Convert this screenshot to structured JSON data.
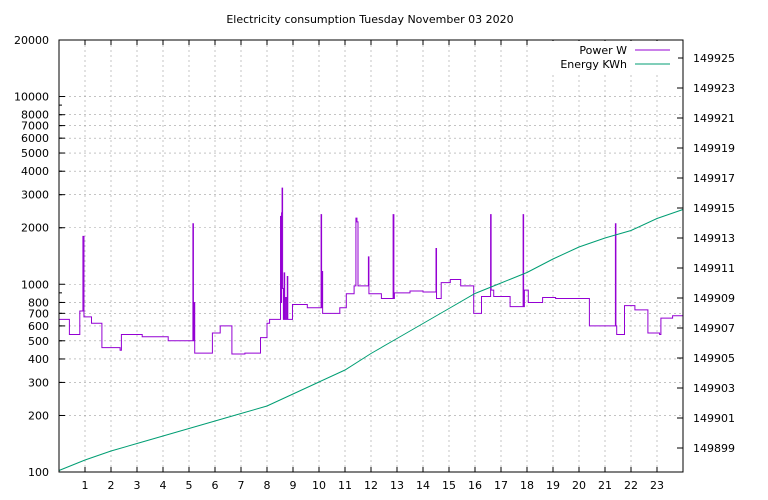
{
  "chart_data": {
    "type": "line",
    "title": "Electricity consumption Tuesday November 03 2020",
    "grid": true,
    "legend_position": "top-right",
    "x": {
      "range": [
        0,
        24
      ],
      "ticks": [
        1,
        2,
        3,
        4,
        5,
        6,
        7,
        8,
        9,
        10,
        11,
        12,
        13,
        14,
        15,
        16,
        17,
        18,
        19,
        20,
        21,
        22,
        23
      ]
    },
    "y_left": {
      "scale": "log",
      "range": [
        100,
        20000
      ],
      "ticks": [
        100,
        200,
        300,
        400,
        500,
        600,
        700,
        800,
        1000,
        2000,
        3000,
        4000,
        5000,
        6000,
        7000,
        8000,
        10000,
        20000
      ]
    },
    "y_right": {
      "scale": "linear",
      "range": [
        149897.4,
        149926.2
      ],
      "ticks": [
        149899,
        149901,
        149903,
        149905,
        149907,
        149909,
        149911,
        149913,
        149915,
        149917,
        149919,
        149921,
        149923,
        149925
      ]
    },
    "series": [
      {
        "name": "Power W",
        "color": "#9400d3",
        "axis": "left",
        "points": [
          [
            0.0,
            650
          ],
          [
            0.4,
            650
          ],
          [
            0.4,
            540
          ],
          [
            0.8,
            540
          ],
          [
            0.8,
            720
          ],
          [
            0.92,
            720
          ],
          [
            0.92,
            1800
          ],
          [
            0.96,
            1800
          ],
          [
            0.96,
            670
          ],
          [
            1.25,
            670
          ],
          [
            1.25,
            620
          ],
          [
            1.65,
            620
          ],
          [
            1.65,
            460
          ],
          [
            2.35,
            460
          ],
          [
            2.35,
            445
          ],
          [
            2.4,
            445
          ],
          [
            2.4,
            540
          ],
          [
            3.2,
            540
          ],
          [
            3.2,
            525
          ],
          [
            4.2,
            525
          ],
          [
            4.2,
            500
          ],
          [
            5.15,
            500
          ],
          [
            5.15,
            2100
          ],
          [
            5.17,
            2100
          ],
          [
            5.17,
            500
          ],
          [
            5.2,
            500
          ],
          [
            5.2,
            800
          ],
          [
            5.22,
            800
          ],
          [
            5.22,
            430
          ],
          [
            5.9,
            430
          ],
          [
            5.9,
            550
          ],
          [
            6.2,
            550
          ],
          [
            6.2,
            600
          ],
          [
            6.65,
            600
          ],
          [
            6.65,
            425
          ],
          [
            7.15,
            425
          ],
          [
            7.15,
            430
          ],
          [
            7.75,
            430
          ],
          [
            7.75,
            520
          ],
          [
            8.0,
            520
          ],
          [
            8.0,
            620
          ],
          [
            8.1,
            620
          ],
          [
            8.1,
            650
          ],
          [
            8.52,
            650
          ],
          [
            8.52,
            2300
          ],
          [
            8.54,
            2300
          ],
          [
            8.54,
            800
          ],
          [
            8.56,
            800
          ],
          [
            8.56,
            2400
          ],
          [
            8.58,
            2400
          ],
          [
            8.58,
            3250
          ],
          [
            8.6,
            3250
          ],
          [
            8.6,
            950
          ],
          [
            8.63,
            950
          ],
          [
            8.63,
            650
          ],
          [
            8.66,
            650
          ],
          [
            8.66,
            1150
          ],
          [
            8.68,
            1150
          ],
          [
            8.68,
            650
          ],
          [
            8.72,
            650
          ],
          [
            8.72,
            850
          ],
          [
            8.74,
            850
          ],
          [
            8.74,
            650
          ],
          [
            8.78,
            650
          ],
          [
            8.78,
            1100
          ],
          [
            8.8,
            1100
          ],
          [
            8.8,
            650
          ],
          [
            8.98,
            650
          ],
          [
            8.98,
            780
          ],
          [
            9.55,
            780
          ],
          [
            9.55,
            750
          ],
          [
            10.08,
            750
          ],
          [
            10.08,
            2350
          ],
          [
            10.1,
            2350
          ],
          [
            10.1,
            750
          ],
          [
            10.12,
            750
          ],
          [
            10.12,
            1170
          ],
          [
            10.14,
            1170
          ],
          [
            10.14,
            700
          ],
          [
            10.8,
            700
          ],
          [
            10.8,
            750
          ],
          [
            11.05,
            750
          ],
          [
            11.05,
            890
          ],
          [
            11.35,
            890
          ],
          [
            11.35,
            980
          ],
          [
            11.42,
            980
          ],
          [
            11.42,
            2250
          ],
          [
            11.46,
            2250
          ],
          [
            11.46,
            2150
          ],
          [
            11.5,
            2150
          ],
          [
            11.5,
            980
          ],
          [
            11.9,
            980
          ],
          [
            11.9,
            1400
          ],
          [
            11.92,
            1400
          ],
          [
            11.92,
            890
          ],
          [
            12.4,
            890
          ],
          [
            12.4,
            840
          ],
          [
            12.85,
            840
          ],
          [
            12.85,
            2350
          ],
          [
            12.88,
            2350
          ],
          [
            12.88,
            840
          ],
          [
            12.9,
            840
          ],
          [
            12.9,
            900
          ],
          [
            13.5,
            900
          ],
          [
            13.5,
            920
          ],
          [
            14.0,
            920
          ],
          [
            14.0,
            910
          ],
          [
            14.5,
            910
          ],
          [
            14.5,
            1550
          ],
          [
            14.52,
            1550
          ],
          [
            14.52,
            840
          ],
          [
            14.7,
            840
          ],
          [
            14.7,
            1020
          ],
          [
            15.05,
            1020
          ],
          [
            15.05,
            1060
          ],
          [
            15.45,
            1060
          ],
          [
            15.45,
            980
          ],
          [
            15.95,
            980
          ],
          [
            15.95,
            700
          ],
          [
            16.25,
            700
          ],
          [
            16.25,
            860
          ],
          [
            16.6,
            860
          ],
          [
            16.6,
            2350
          ],
          [
            16.62,
            2350
          ],
          [
            16.62,
            930
          ],
          [
            16.72,
            930
          ],
          [
            16.72,
            860
          ],
          [
            17.35,
            860
          ],
          [
            17.35,
            760
          ],
          [
            17.85,
            760
          ],
          [
            17.85,
            2350
          ],
          [
            17.87,
            2350
          ],
          [
            17.87,
            760
          ],
          [
            17.9,
            760
          ],
          [
            17.9,
            930
          ],
          [
            18.05,
            930
          ],
          [
            18.05,
            800
          ],
          [
            18.6,
            800
          ],
          [
            18.6,
            850
          ],
          [
            19.1,
            850
          ],
          [
            19.1,
            840
          ],
          [
            20.4,
            840
          ],
          [
            20.4,
            600
          ],
          [
            21.4,
            600
          ],
          [
            21.4,
            2100
          ],
          [
            21.42,
            2100
          ],
          [
            21.42,
            600
          ],
          [
            21.45,
            600
          ],
          [
            21.45,
            540
          ],
          [
            21.75,
            540
          ],
          [
            21.75,
            770
          ],
          [
            22.15,
            770
          ],
          [
            22.15,
            730
          ],
          [
            22.65,
            730
          ],
          [
            22.65,
            550
          ],
          [
            23.1,
            550
          ],
          [
            23.1,
            540
          ],
          [
            23.15,
            540
          ],
          [
            23.15,
            660
          ],
          [
            23.6,
            660
          ],
          [
            23.6,
            680
          ],
          [
            24.0,
            680
          ]
        ]
      },
      {
        "name": "Energy KWh",
        "color": "#009e73",
        "axis": "right",
        "points": [
          [
            0,
            149897.5
          ],
          [
            1,
            149898.2
          ],
          [
            2,
            149898.8
          ],
          [
            3,
            149899.3
          ],
          [
            4,
            149899.8
          ],
          [
            5,
            149900.3
          ],
          [
            6,
            149900.8
          ],
          [
            7,
            149901.3
          ],
          [
            8,
            149901.8
          ],
          [
            9,
            149902.6
          ],
          [
            10,
            149903.4
          ],
          [
            11,
            149904.2
          ],
          [
            12,
            149905.3
          ],
          [
            13,
            149906.3
          ],
          [
            14,
            149907.3
          ],
          [
            15,
            149908.3
          ],
          [
            16,
            149909.3
          ],
          [
            17,
            149910.0
          ],
          [
            18,
            149910.7
          ],
          [
            19,
            149911.6
          ],
          [
            20,
            149912.4
          ],
          [
            21,
            149913.0
          ],
          [
            22,
            149913.5
          ],
          [
            23,
            149914.3
          ],
          [
            24,
            149914.9
          ]
        ]
      }
    ]
  }
}
